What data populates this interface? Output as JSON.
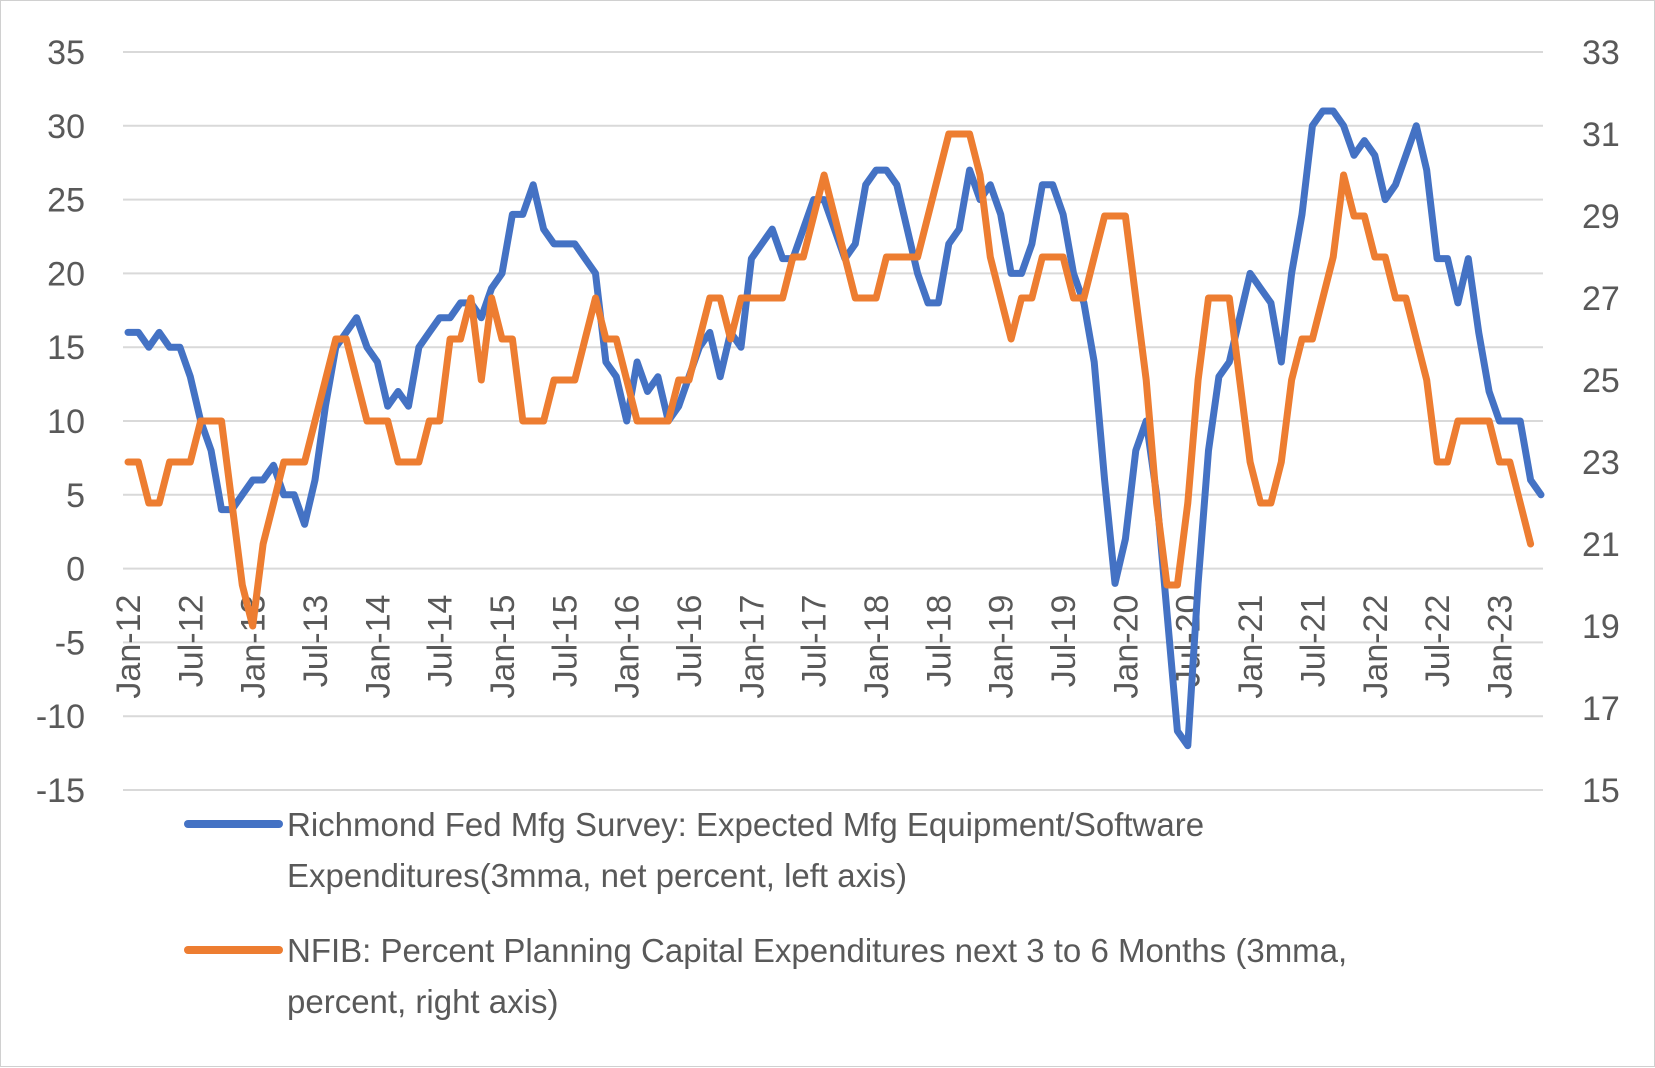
{
  "chart_data": {
    "type": "line",
    "title": "",
    "xlabel": "",
    "ylabel": "",
    "y_left": {
      "min": -15,
      "max": 35,
      "step": 5,
      "ticks": [
        "35",
        "30",
        "25",
        "20",
        "15",
        "10",
        "5",
        "0",
        "-5",
        "-10",
        "-15"
      ]
    },
    "y_right": {
      "min": 15,
      "max": 33,
      "step": 2,
      "ticks": [
        "33",
        "31",
        "29",
        "27",
        "25",
        "23",
        "21",
        "19",
        "17",
        "15"
      ]
    },
    "x_start": "Jan-12",
    "x_tick_labels": [
      "Jan-12",
      "Jul-12",
      "Jan-13",
      "Jul-13",
      "Jan-14",
      "Jul-14",
      "Jan-15",
      "Jul-15",
      "Jan-16",
      "Jul-16",
      "Jan-17",
      "Jul-17",
      "Jan-18",
      "Jul-18",
      "Jan-19",
      "Jul-19",
      "Jan-20",
      "Jul-20",
      "Jan-21",
      "Jul-21",
      "Jan-22",
      "Jul-22",
      "Jan-23"
    ],
    "legend_position": "bottom",
    "series": [
      {
        "name": "Richmond Fed Mfg Survey: Expected Mfg Equipment/Software Expenditures(3mma, net percent, left axis)",
        "legend_lines": [
          "Richmond Fed Mfg Survey: Expected Mfg Equipment/Software",
          "Expenditures(3mma, net percent, left axis)"
        ],
        "axis": "left",
        "color": "#4472C4",
        "values": [
          16,
          16,
          15,
          16,
          15,
          15,
          13,
          10,
          8,
          4,
          4,
          5,
          6,
          6,
          7,
          5,
          5,
          3,
          6,
          11,
          15,
          16,
          17,
          15,
          14,
          11,
          12,
          11,
          15,
          16,
          17,
          17,
          18,
          18,
          17,
          19,
          20,
          24,
          24,
          26,
          23,
          22,
          22,
          22,
          21,
          20,
          14,
          13,
          10,
          14,
          12,
          13,
          10,
          11,
          13,
          15,
          16,
          13,
          16,
          15,
          21,
          22,
          23,
          21,
          21,
          23,
          25,
          25,
          23,
          21,
          22,
          26,
          27,
          27,
          26,
          23,
          20,
          18,
          18,
          22,
          23,
          27,
          25,
          26,
          24,
          20,
          20,
          22,
          26,
          26,
          24,
          20,
          18,
          14,
          6,
          -1,
          2,
          8,
          10,
          5,
          -3,
          -11,
          -12,
          -1,
          8,
          13,
          14,
          17,
          20,
          19,
          18,
          14,
          20,
          24,
          30,
          31,
          31,
          30,
          28,
          29,
          28,
          25,
          26,
          28,
          30,
          27,
          21,
          21,
          18,
          21,
          16,
          12,
          10,
          10,
          10,
          6,
          5
        ]
      },
      {
        "name": "NFIB: Percent Planning Capital Expenditures next 3 to 6 Months (3mma, percent, right axis)",
        "legend_lines": [
          "NFIB: Percent Planning Capital Expenditures next 3 to 6 Months (3mma,",
          "percent, right axis)"
        ],
        "axis": "right",
        "color": "#ED7D31",
        "values": [
          23,
          23,
          22,
          22,
          23,
          23,
          23,
          24,
          24,
          24,
          22,
          20,
          19,
          21,
          22,
          23,
          23,
          23,
          24,
          25,
          26,
          26,
          25,
          24,
          24,
          24,
          23,
          23,
          23,
          24,
          24,
          26,
          26,
          27,
          25,
          27,
          26,
          26,
          24,
          24,
          24,
          25,
          25,
          25,
          26,
          27,
          26,
          26,
          25,
          24,
          24,
          24,
          24,
          25,
          25,
          26,
          27,
          27,
          26,
          27,
          27,
          27,
          27,
          27,
          28,
          28,
          29,
          30,
          29,
          28,
          27,
          27,
          27,
          28,
          28,
          28,
          28,
          29,
          30,
          31,
          31,
          31,
          30,
          28,
          27,
          26,
          27,
          27,
          28,
          28,
          28,
          27,
          27,
          28,
          29,
          29,
          29,
          27,
          25,
          22,
          20,
          20,
          22,
          25,
          27,
          27,
          27,
          25,
          23,
          22,
          22,
          23,
          25,
          26,
          26,
          27,
          28,
          30,
          29,
          29,
          28,
          28,
          27,
          27,
          26,
          25,
          23,
          23,
          24,
          24,
          24,
          24,
          23,
          23,
          22,
          21
        ]
      }
    ]
  }
}
